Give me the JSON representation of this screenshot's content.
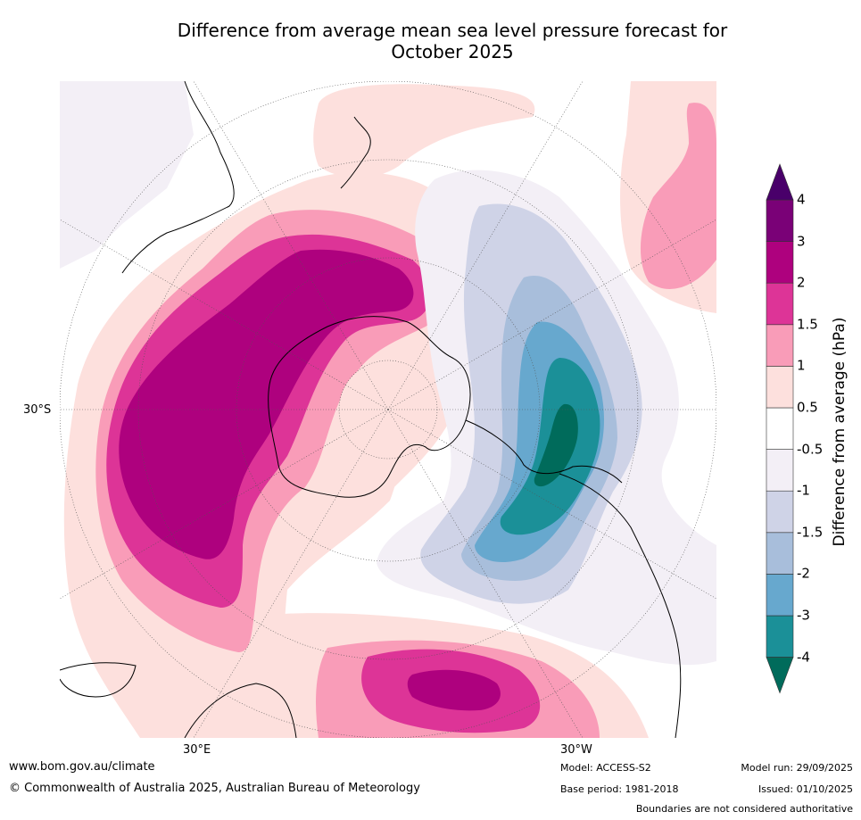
{
  "title": {
    "line1": "Difference from average mean sea level pressure forecast for",
    "line2": "October 2025"
  },
  "map": {
    "projection": "South polar stereographic",
    "axis_labels": {
      "lat_left": "30°S",
      "lon_left": "30°E",
      "lon_right": "30°W"
    }
  },
  "colorbar": {
    "title": "Difference from average (hPa)",
    "levels": [
      "-4",
      "-3",
      "-2",
      "-1.5",
      "-1",
      "-0.5",
      "0.5",
      "1",
      "1.5",
      "2",
      "3",
      "4"
    ],
    "colors": [
      "#006b5b",
      "#1b9098",
      "#67a8ce",
      "#a8bedb",
      "#cfd3e7",
      "#f3eff6",
      "#ffffff",
      "#fde0dd",
      "#f99cb8",
      "#dd3497",
      "#ae017e",
      "#7a0177",
      "#49006a"
    ]
  },
  "footer": {
    "website": "www.bom.gov.au/climate",
    "copyright": "© Commonwealth of Australia 2025, Australian Bureau of Meteorology",
    "model": "Model: ACCESS-S2",
    "base_period": "Base period: 1981-2018",
    "model_run": "Model run: 29/09/2025",
    "issued": "Issued: 01/10/2025",
    "disclaimer": "Boundaries are not considered authoritative"
  }
}
